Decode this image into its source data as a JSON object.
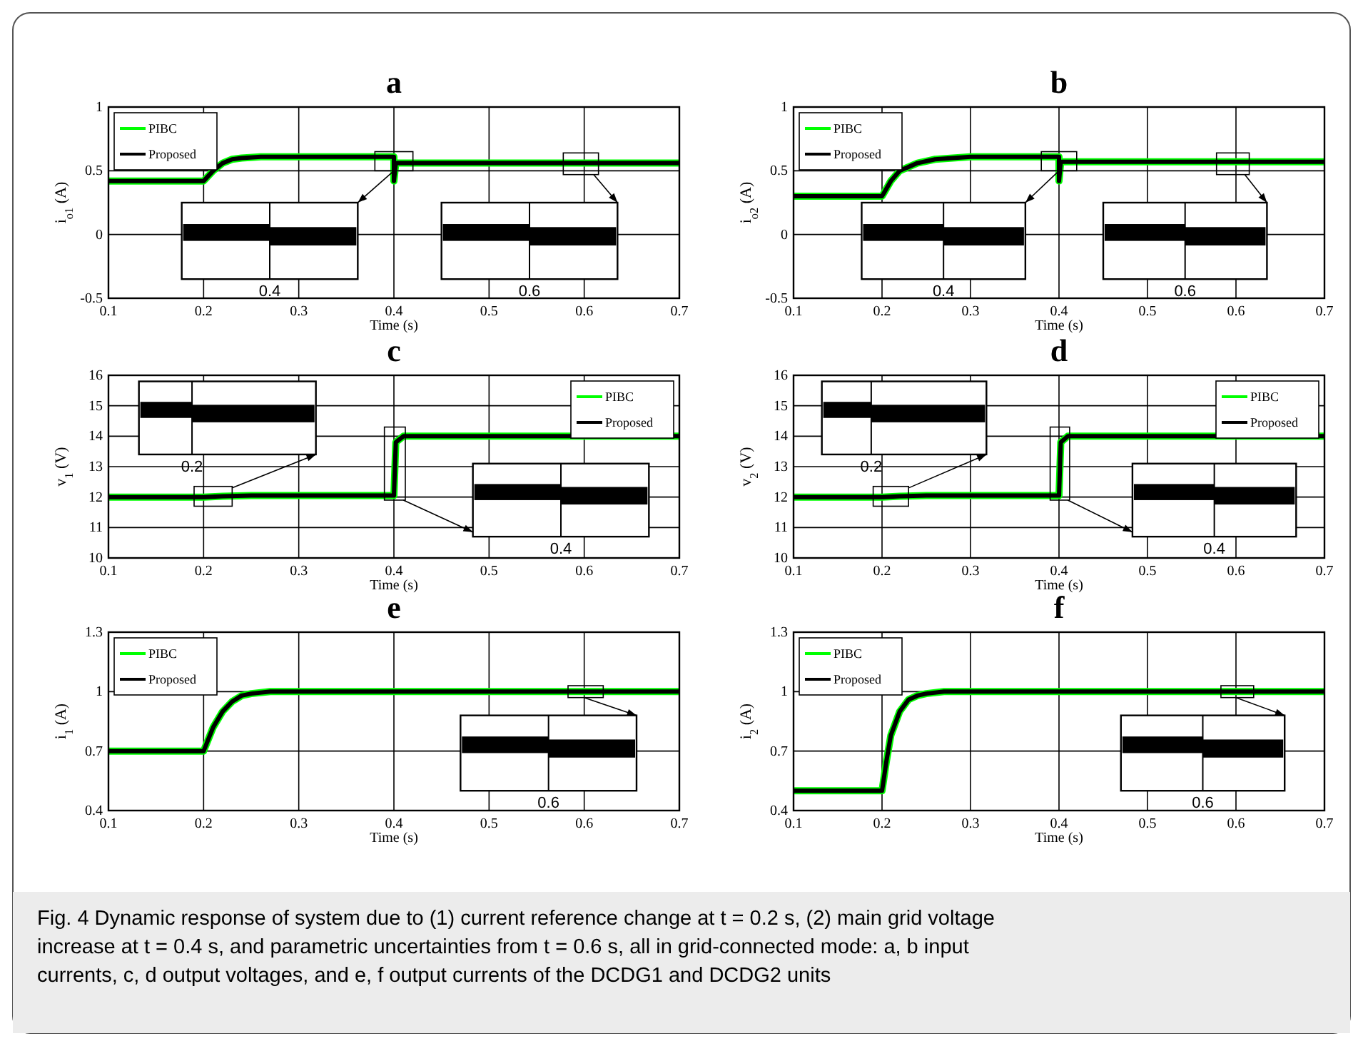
{
  "chart_data": [
    {
      "type": "line",
      "title": "a",
      "xlabel": "Time (s)",
      "ylabel": "i$_{o1}$ (A)",
      "xlim": [
        0.1,
        0.7
      ],
      "xticks": [
        0.1,
        0.2,
        0.3,
        0.4,
        0.5,
        0.6,
        0.7
      ],
      "ylim": [
        -0.5,
        1
      ],
      "yticks": [
        -0.5,
        0,
        0.5,
        1
      ],
      "grid": true,
      "legend": "top left",
      "annotations": [
        "0.4",
        "0.6"
      ],
      "x": [
        0.1,
        0.2,
        0.21,
        0.22,
        0.23,
        0.24,
        0.26,
        0.4,
        0.4,
        0.402,
        0.41,
        0.6,
        0.7
      ],
      "series": [
        {
          "name": "PIBC",
          "color": "#00ff00",
          "values": [
            0.42,
            0.42,
            0.5,
            0.56,
            0.59,
            0.6,
            0.61,
            0.61,
            0.42,
            0.56,
            0.56,
            0.56,
            0.56
          ]
        },
        {
          "name": "Proposed",
          "color": "#000000",
          "values": [
            0.42,
            0.42,
            0.5,
            0.56,
            0.59,
            0.6,
            0.61,
            0.61,
            0.42,
            0.56,
            0.56,
            0.56,
            0.56
          ]
        }
      ]
    },
    {
      "type": "line",
      "title": "b",
      "xlabel": "Time (s)",
      "ylabel": "i$_{o2}$ (A)",
      "xlim": [
        0.1,
        0.7
      ],
      "xticks": [
        0.1,
        0.2,
        0.3,
        0.4,
        0.5,
        0.6,
        0.7
      ],
      "ylim": [
        -0.5,
        1
      ],
      "yticks": [
        -0.5,
        0,
        0.5,
        1
      ],
      "grid": true,
      "legend": "top left",
      "annotations": [
        "0.4",
        "0.6"
      ],
      "x": [
        0.1,
        0.2,
        0.21,
        0.22,
        0.24,
        0.26,
        0.3,
        0.35,
        0.4,
        0.4,
        0.402,
        0.41,
        0.6,
        0.7
      ],
      "series": [
        {
          "name": "PIBC",
          "color": "#00ff00",
          "values": [
            0.3,
            0.3,
            0.42,
            0.5,
            0.56,
            0.59,
            0.61,
            0.61,
            0.61,
            0.42,
            0.57,
            0.57,
            0.57,
            0.57
          ]
        },
        {
          "name": "Proposed",
          "color": "#000000",
          "values": [
            0.3,
            0.3,
            0.42,
            0.5,
            0.56,
            0.59,
            0.61,
            0.61,
            0.61,
            0.42,
            0.57,
            0.57,
            0.57,
            0.57
          ]
        }
      ]
    },
    {
      "type": "line",
      "title": "c",
      "xlabel": "Time (s)",
      "ylabel": "v$_{1}$ (V)",
      "xlim": [
        0.1,
        0.7
      ],
      "xticks": [
        0.1,
        0.2,
        0.3,
        0.4,
        0.5,
        0.6,
        0.7
      ],
      "ylim": [
        10,
        16
      ],
      "yticks": [
        10,
        11,
        12,
        13,
        14,
        15,
        16
      ],
      "grid": true,
      "legend": "top right",
      "annotations": [
        "0.2",
        "0.4"
      ],
      "x": [
        0.1,
        0.2,
        0.22,
        0.25,
        0.4,
        0.4,
        0.402,
        0.41,
        0.7
      ],
      "series": [
        {
          "name": "PIBC",
          "color": "#00ff00",
          "values": [
            12,
            12,
            12.03,
            12.05,
            12.05,
            12.05,
            13.8,
            14,
            14
          ]
        },
        {
          "name": "Proposed",
          "color": "#000000",
          "values": [
            12,
            12,
            12.03,
            12.05,
            12.05,
            12.05,
            13.8,
            14,
            14
          ]
        }
      ]
    },
    {
      "type": "line",
      "title": "d",
      "xlabel": "Time (s)",
      "ylabel": "v$_{2}$ (V)",
      "xlim": [
        0.1,
        0.7
      ],
      "xticks": [
        0.1,
        0.2,
        0.3,
        0.4,
        0.5,
        0.6,
        0.7
      ],
      "ylim": [
        10,
        16
      ],
      "yticks": [
        10,
        11,
        12,
        13,
        14,
        15,
        16
      ],
      "grid": true,
      "legend": "top right",
      "annotations": [
        "0.2",
        "0.4"
      ],
      "x": [
        0.1,
        0.2,
        0.22,
        0.25,
        0.4,
        0.4,
        0.402,
        0.41,
        0.7
      ],
      "series": [
        {
          "name": "PIBC",
          "color": "#00ff00",
          "values": [
            12,
            12,
            12.03,
            12.05,
            12.05,
            12.05,
            13.8,
            14,
            14
          ]
        },
        {
          "name": "Proposed",
          "color": "#000000",
          "values": [
            12,
            12,
            12.03,
            12.05,
            12.05,
            12.05,
            13.8,
            14,
            14
          ]
        }
      ]
    },
    {
      "type": "line",
      "title": "e",
      "xlabel": "Time (s)",
      "ylabel": "i$_{1}$ (A)",
      "xlim": [
        0.1,
        0.7
      ],
      "xticks": [
        0.1,
        0.2,
        0.3,
        0.4,
        0.5,
        0.6,
        0.7
      ],
      "ylim": [
        0.4,
        1.3
      ],
      "yticks": [
        0.4,
        0.7,
        1,
        1.3
      ],
      "grid": true,
      "legend": "top left",
      "annotations": [
        "0.6"
      ],
      "x": [
        0.1,
        0.2,
        0.21,
        0.22,
        0.23,
        0.24,
        0.25,
        0.27,
        0.7
      ],
      "series": [
        {
          "name": "PIBC",
          "color": "#00ff00",
          "values": [
            0.7,
            0.7,
            0.82,
            0.9,
            0.95,
            0.98,
            0.99,
            1,
            1
          ]
        },
        {
          "name": "Proposed",
          "color": "#000000",
          "values": [
            0.7,
            0.7,
            0.82,
            0.9,
            0.95,
            0.98,
            0.99,
            1,
            1
          ]
        }
      ]
    },
    {
      "type": "line",
      "title": "f",
      "xlabel": "Time (s)",
      "ylabel": "i$_{2}$ (A)",
      "xlim": [
        0.1,
        0.7
      ],
      "xticks": [
        0.1,
        0.2,
        0.3,
        0.4,
        0.5,
        0.6,
        0.7
      ],
      "ylim": [
        0.4,
        1.3
      ],
      "yticks": [
        0.4,
        0.7,
        1,
        1.3
      ],
      "grid": true,
      "legend": "top left",
      "annotations": [
        "0.6"
      ],
      "x": [
        0.1,
        0.2,
        0.205,
        0.21,
        0.22,
        0.23,
        0.24,
        0.25,
        0.27,
        0.7
      ],
      "series": [
        {
          "name": "PIBC",
          "color": "#00ff00",
          "values": [
            0.5,
            0.5,
            0.65,
            0.78,
            0.9,
            0.96,
            0.98,
            0.99,
            1,
            1
          ]
        },
        {
          "name": "Proposed",
          "color": "#000000",
          "values": [
            0.5,
            0.5,
            0.65,
            0.78,
            0.9,
            0.96,
            0.98,
            0.99,
            1,
            1
          ]
        }
      ]
    },
    {
      "type": "other",
      "annotations": [
        "Fig. 4  Dynamic response of system due to (1) current reference change at t = 0.2 s, (2) main grid voltage",
        "increase at t = 0.4 s, and parametric uncertainties from t = 0.6 s, all in grid-connected mode: a, b input",
        "currents, c, d output voltages, and e, f output currents of the DCDG1 and DCDG2 units"
      ]
    }
  ]
}
